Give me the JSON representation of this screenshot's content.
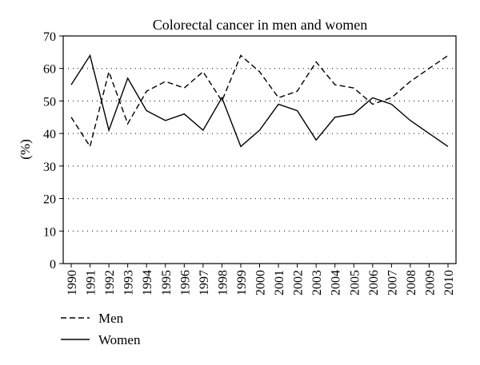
{
  "chart_data": {
    "type": "line",
    "title": "Colorectal cancer in men and women",
    "xlabel": "",
    "ylabel": "(%)",
    "ylim": [
      0,
      70
    ],
    "yticks": [
      0,
      10,
      20,
      30,
      40,
      50,
      60,
      70
    ],
    "grid": "horizontal-dotted",
    "legend_placement": "bottom-left",
    "x": [
      "1990",
      "1991",
      "1992",
      "1993",
      "1994",
      "1995",
      "1996",
      "1997",
      "1998",
      "1999",
      "2000",
      "2001",
      "2002",
      "2003",
      "2004",
      "2005",
      "2006",
      "2007",
      "2008",
      "2009",
      "2010"
    ],
    "series": [
      {
        "name": "Men",
        "style": "dashed",
        "color": "#000000",
        "values": [
          45,
          36,
          59,
          43,
          53,
          56,
          54,
          59,
          50,
          64,
          59,
          51,
          53,
          62,
          55,
          54,
          49,
          51,
          56,
          60,
          64
        ]
      },
      {
        "name": "Women",
        "style": "solid",
        "color": "#000000",
        "values": [
          55,
          64,
          41,
          57,
          47,
          44,
          46,
          41,
          51,
          36,
          41,
          49,
          47,
          38,
          45,
          46,
          51,
          49,
          44,
          40,
          36
        ]
      }
    ]
  }
}
